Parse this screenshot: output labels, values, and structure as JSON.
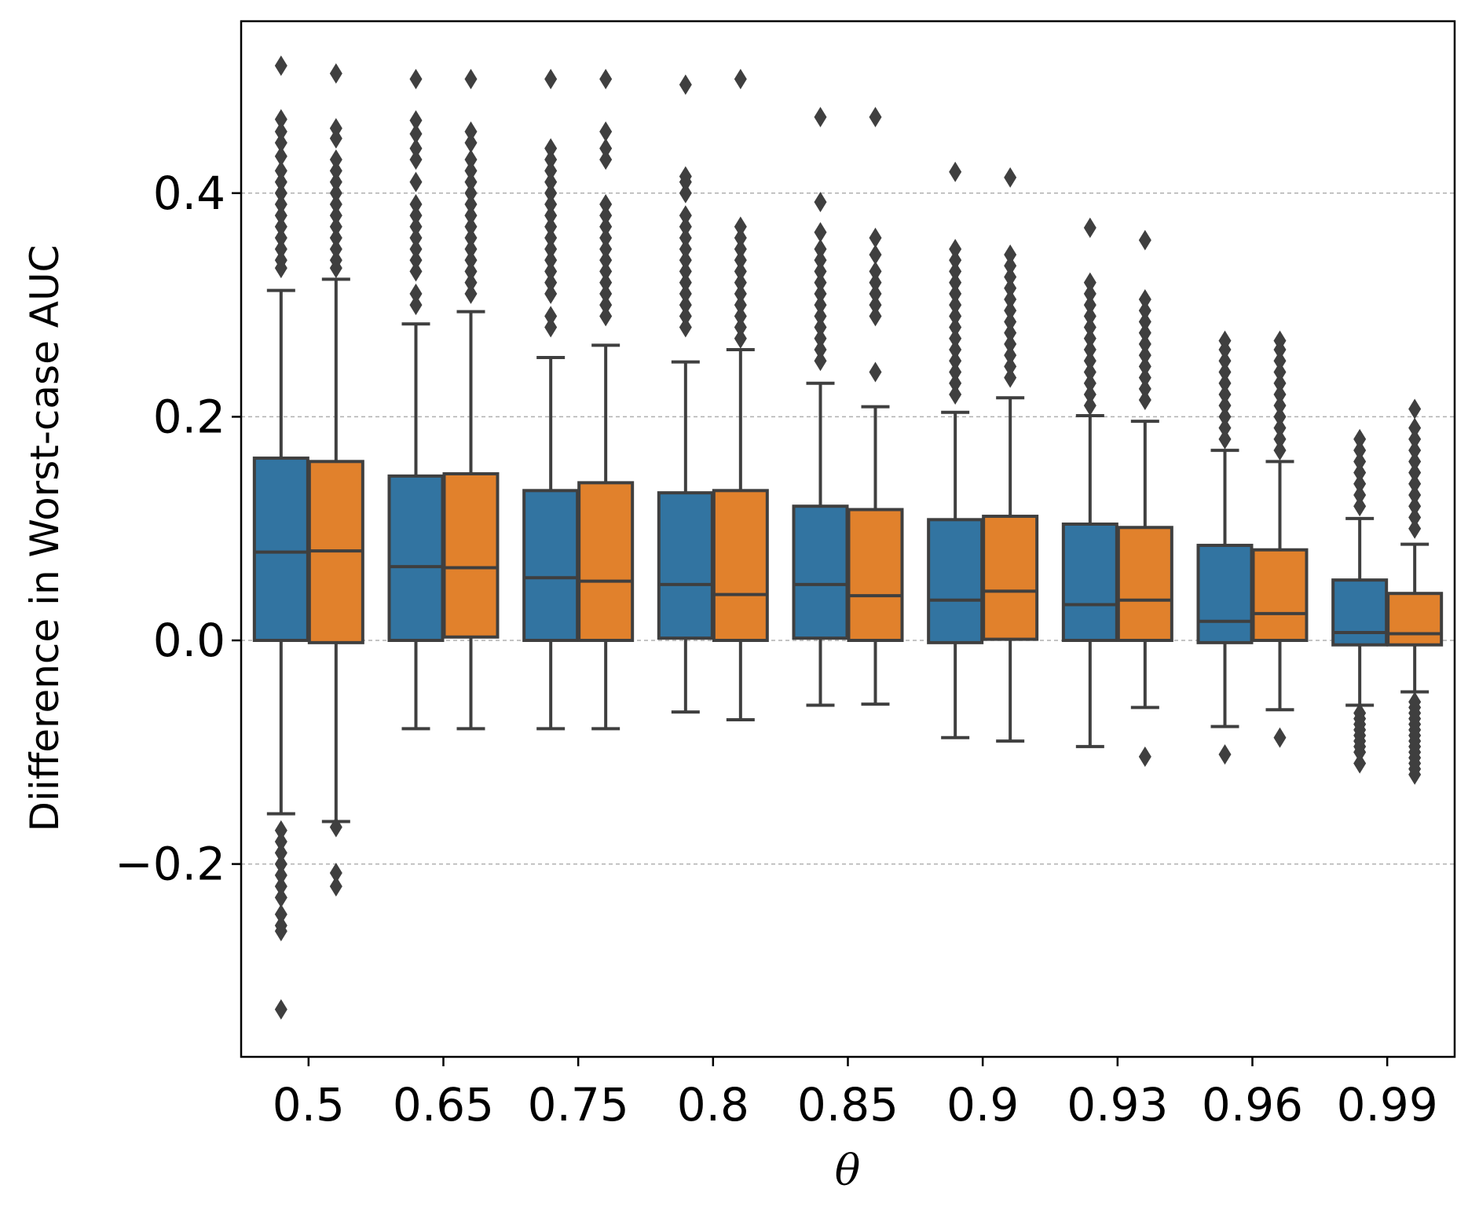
{
  "chart_data": {
    "type": "box",
    "title": "",
    "xlabel": "θ",
    "ylabel": "Diifference in Worst-case AUC",
    "ylim": [
      -0.37,
      0.555
    ],
    "yticks": [
      {
        "value": -0.2,
        "label": "−0.2"
      },
      {
        "value": 0.0,
        "label": "0.0"
      },
      {
        "value": 0.2,
        "label": "0.2"
      },
      {
        "value": 0.4,
        "label": "0.4"
      }
    ],
    "grid": "horizontal dashed",
    "categories": [
      "0.5",
      "0.65",
      "0.75",
      "0.8",
      "0.85",
      "0.9",
      "0.93",
      "0.96",
      "0.99"
    ],
    "series": [
      {
        "color": "#3274a1",
        "boxes": [
          {
            "q1": 0.0,
            "median": 0.079,
            "q3": 0.163,
            "whisker_low": -0.155,
            "whisker_high": 0.313,
            "outliers": [
              0.514,
              0.466,
              0.455,
              0.445,
              0.433,
              0.42,
              0.41,
              0.4,
              0.39,
              0.38,
              0.37,
              0.36,
              0.35,
              0.34,
              0.333,
              -0.17,
              -0.18,
              -0.19,
              -0.2,
              -0.21,
              -0.22,
              -0.23,
              -0.245,
              -0.255,
              -0.26,
              -0.33
            ]
          },
          {
            "q1": 0.0,
            "median": 0.066,
            "q3": 0.147,
            "whisker_low": -0.079,
            "whisker_high": 0.283,
            "outliers": [
              0.502,
              0.465,
              0.453,
              0.44,
              0.43,
              0.41,
              0.39,
              0.38,
              0.37,
              0.36,
              0.35,
              0.34,
              0.33,
              0.31,
              0.3
            ]
          },
          {
            "q1": 0.0,
            "median": 0.056,
            "q3": 0.134,
            "whisker_low": -0.079,
            "whisker_high": 0.253,
            "outliers": [
              0.502,
              0.44,
              0.43,
              0.42,
              0.41,
              0.4,
              0.39,
              0.38,
              0.37,
              0.36,
              0.35,
              0.34,
              0.33,
              0.32,
              0.31,
              0.29,
              0.28
            ]
          },
          {
            "q1": 0.002,
            "median": 0.05,
            "q3": 0.132,
            "whisker_low": -0.064,
            "whisker_high": 0.249,
            "outliers": [
              0.497,
              0.415,
              0.41,
              0.4,
              0.38,
              0.37,
              0.36,
              0.35,
              0.34,
              0.33,
              0.32,
              0.31,
              0.3,
              0.29,
              0.28
            ]
          },
          {
            "q1": 0.002,
            "median": 0.05,
            "q3": 0.12,
            "whisker_low": -0.058,
            "whisker_high": 0.23,
            "outliers": [
              0.468,
              0.392,
              0.365,
              0.35,
              0.34,
              0.33,
              0.32,
              0.31,
              0.3,
              0.29,
              0.28,
              0.27,
              0.26,
              0.25
            ]
          },
          {
            "q1": -0.002,
            "median": 0.036,
            "q3": 0.108,
            "whisker_low": -0.087,
            "whisker_high": 0.204,
            "outliers": [
              0.419,
              0.35,
              0.34,
              0.33,
              0.32,
              0.31,
              0.3,
              0.29,
              0.28,
              0.27,
              0.26,
              0.25,
              0.24,
              0.23,
              0.22
            ]
          },
          {
            "q1": 0.0,
            "median": 0.032,
            "q3": 0.104,
            "whisker_low": -0.095,
            "whisker_high": 0.201,
            "outliers": [
              0.369,
              0.32,
              0.31,
              0.3,
              0.29,
              0.28,
              0.27,
              0.26,
              0.25,
              0.24,
              0.23,
              0.22,
              0.21
            ]
          },
          {
            "q1": -0.002,
            "median": 0.017,
            "q3": 0.085,
            "whisker_low": -0.077,
            "whisker_high": 0.17,
            "outliers": [
              0.268,
              0.26,
              0.25,
              0.24,
              0.23,
              0.22,
              0.21,
              0.2,
              0.19,
              0.18,
              -0.102
            ]
          },
          {
            "q1": -0.004,
            "median": 0.007,
            "q3": 0.054,
            "whisker_low": -0.058,
            "whisker_high": 0.109,
            "outliers": [
              0.18,
              0.17,
              0.16,
              0.15,
              0.14,
              0.13,
              0.12,
              -0.065,
              -0.07,
              -0.075,
              -0.08,
              -0.085,
              -0.09,
              -0.095,
              -0.1,
              -0.11
            ]
          }
        ]
      },
      {
        "color": "#e1812c",
        "boxes": [
          {
            "q1": -0.002,
            "median": 0.08,
            "q3": 0.16,
            "whisker_low": -0.162,
            "whisker_high": 0.323,
            "outliers": [
              0.507,
              0.458,
              0.449,
              0.43,
              0.42,
              0.41,
              0.4,
              0.39,
              0.38,
              0.37,
              0.36,
              0.35,
              0.34,
              0.333,
              -0.167,
              -0.208,
              -0.22
            ]
          },
          {
            "q1": 0.003,
            "median": 0.065,
            "q3": 0.149,
            "whisker_low": -0.079,
            "whisker_high": 0.294,
            "outliers": [
              0.502,
              0.455,
              0.445,
              0.43,
              0.42,
              0.41,
              0.4,
              0.39,
              0.38,
              0.37,
              0.36,
              0.35,
              0.34,
              0.33,
              0.32,
              0.31
            ]
          },
          {
            "q1": 0.0,
            "median": 0.053,
            "q3": 0.141,
            "whisker_low": -0.079,
            "whisker_high": 0.264,
            "outliers": [
              0.502,
              0.455,
              0.44,
              0.43,
              0.39,
              0.38,
              0.37,
              0.36,
              0.35,
              0.34,
              0.33,
              0.32,
              0.31,
              0.3,
              0.29
            ]
          },
          {
            "q1": 0.0,
            "median": 0.041,
            "q3": 0.134,
            "whisker_low": -0.071,
            "whisker_high": 0.26,
            "outliers": [
              0.502,
              0.37,
              0.36,
              0.35,
              0.34,
              0.33,
              0.32,
              0.31,
              0.3,
              0.29,
              0.28,
              0.27
            ]
          },
          {
            "q1": 0.0,
            "median": 0.04,
            "q3": 0.117,
            "whisker_low": -0.057,
            "whisker_high": 0.209,
            "outliers": [
              0.468,
              0.36,
              0.345,
              0.33,
              0.32,
              0.31,
              0.3,
              0.29,
              0.24
            ]
          },
          {
            "q1": 0.001,
            "median": 0.044,
            "q3": 0.111,
            "whisker_low": -0.09,
            "whisker_high": 0.217,
            "outliers": [
              0.414,
              0.345,
              0.335,
              0.325,
              0.315,
              0.305,
              0.295,
              0.285,
              0.275,
              0.265,
              0.255,
              0.245,
              0.235
            ]
          },
          {
            "q1": 0.0,
            "median": 0.036,
            "q3": 0.101,
            "whisker_low": -0.06,
            "whisker_high": 0.196,
            "outliers": [
              0.358,
              0.305,
              0.295,
              0.285,
              0.275,
              0.265,
              0.255,
              0.245,
              0.235,
              0.225,
              0.215,
              -0.104
            ]
          },
          {
            "q1": 0.0,
            "median": 0.024,
            "q3": 0.081,
            "whisker_low": -0.062,
            "whisker_high": 0.16,
            "outliers": [
              0.268,
              0.26,
              0.25,
              0.24,
              0.23,
              0.22,
              0.21,
              0.2,
              0.19,
              0.18,
              0.17,
              -0.087
            ]
          },
          {
            "q1": -0.004,
            "median": 0.006,
            "q3": 0.042,
            "whisker_low": -0.046,
            "whisker_high": 0.086,
            "outliers": [
              0.207,
              0.19,
              0.18,
              0.17,
              0.16,
              0.15,
              0.14,
              0.13,
              0.12,
              0.11,
              0.1,
              -0.055,
              -0.06,
              -0.065,
              -0.07,
              -0.075,
              -0.08,
              -0.085,
              -0.09,
              -0.095,
              -0.1,
              -0.105,
              -0.11,
              -0.115,
              -0.12
            ]
          }
        ]
      }
    ]
  }
}
